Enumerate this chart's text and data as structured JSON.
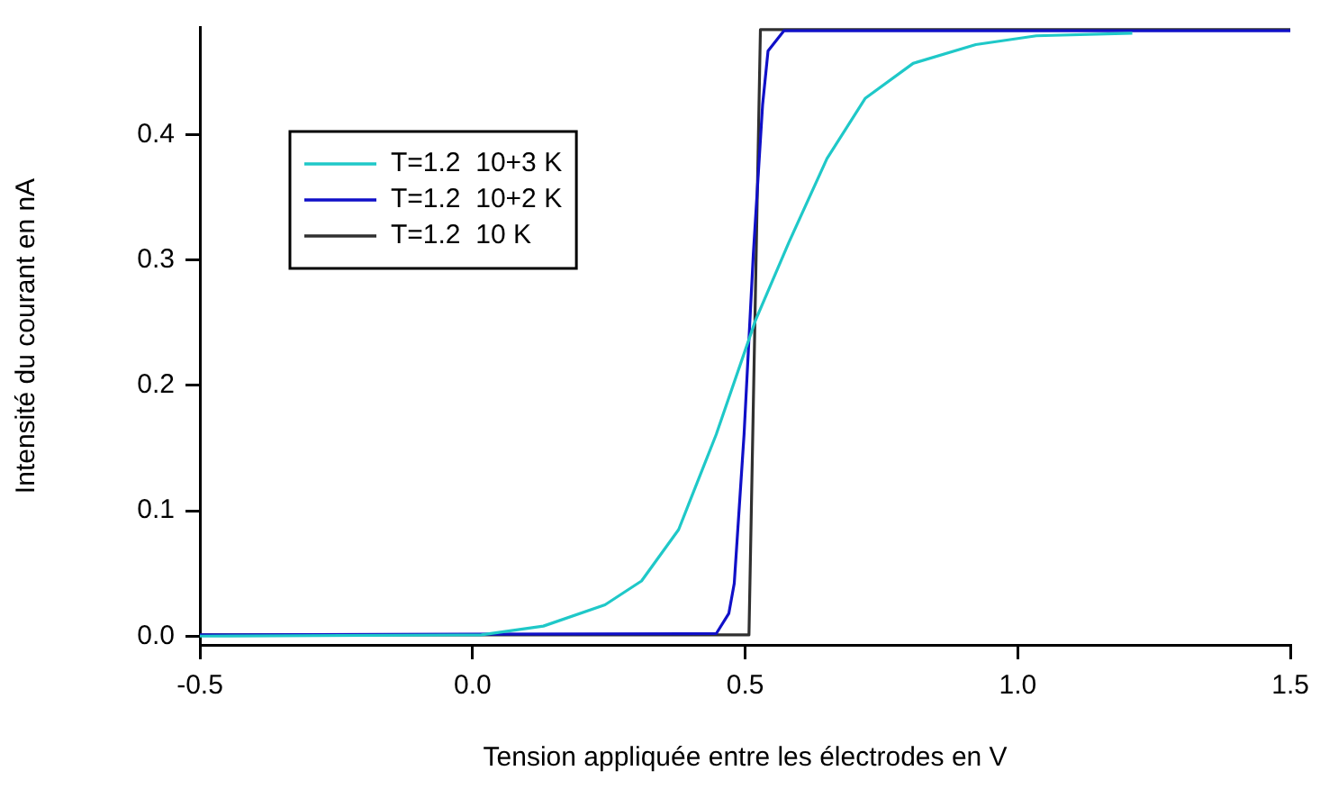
{
  "chart_data": {
    "type": "line",
    "xlabel": "Tension appliquée entre les électrodes en V",
    "ylabel": "Intensité du courant en nA",
    "xlim": [
      -0.5,
      1.5
    ],
    "xticks": [
      -0.5,
      {
        "value": 0,
        "label": "0.0"
      },
      0.5,
      {
        "value": 1,
        "label": "1.0"
      },
      1.5
    ],
    "ylim": [
      -0.007,
      0.486
    ],
    "yticks": [
      {
        "value": 0,
        "label": "0.0"
      },
      0.1,
      0.2,
      0.3,
      0.4
    ],
    "grid": false,
    "legend": "top left",
    "marker": "none",
    "line_style": "solid",
    "series": [
      {
        "name": "T=1.2  10+3 K",
        "color": "#1fc8c8",
        "x": [
          -0.5,
          0.016,
          0.13,
          0.243,
          0.31,
          0.378,
          0.447,
          0.519,
          0.58,
          0.65,
          0.72,
          0.808,
          0.923,
          1.034,
          1.21
        ],
        "values": [
          0,
          0.001,
          0.008,
          0.025,
          0.044,
          0.085,
          0.161,
          0.252,
          0.314,
          0.381,
          0.429,
          0.457,
          0.472,
          0.479,
          0.481
        ]
      },
      {
        "name": "T=1.2  10+2 K",
        "color": "#1010c8",
        "x": [
          -0.5,
          0.447,
          0.47,
          0.48,
          0.498,
          0.515,
          0.532,
          0.542,
          0.571,
          1.5
        ],
        "values": [
          0.001,
          0.002,
          0.018,
          0.042,
          0.161,
          0.305,
          0.424,
          0.467,
          0.483,
          0.483
        ]
      },
      {
        "name": "T=1.2  10 K",
        "color": "#303030",
        "x": [
          -0.5,
          0.507,
          0.528,
          1.5
        ],
        "values": [
          0.001,
          0.001,
          0.484,
          0.484
        ]
      }
    ]
  }
}
